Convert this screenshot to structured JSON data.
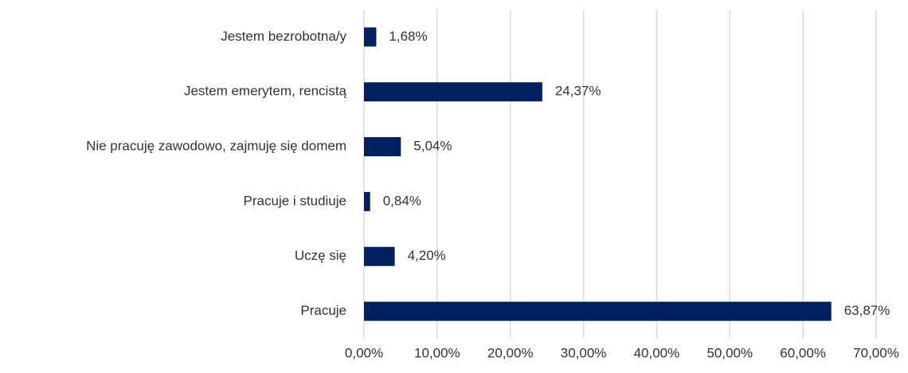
{
  "chart_data": {
    "type": "bar",
    "orientation": "horizontal",
    "categories": [
      "Jestem bezrobotna/y",
      "Jestem emerytem, rencistą",
      "Nie pracuję zawodowo, zajmuję się domem",
      "Pracuje i studiuje",
      "Uczę się",
      "Pracuje"
    ],
    "values": [
      1.68,
      24.37,
      5.04,
      0.84,
      4.2,
      63.87
    ],
    "value_labels": [
      "1,68%",
      "24,37%",
      "5,04%",
      "0,84%",
      "4,20%",
      "63,87%"
    ],
    "color": "#002060",
    "xlim": [
      0,
      70
    ],
    "xticks": [
      {
        "value": 0,
        "label": "0,00%"
      },
      {
        "value": 10,
        "label": "10,00%"
      },
      {
        "value": 20,
        "label": "20,00%"
      },
      {
        "value": 30,
        "label": "30,00%"
      },
      {
        "value": 40,
        "label": "40,00%"
      },
      {
        "value": 50,
        "label": "50,00%"
      },
      {
        "value": 60,
        "label": "60,00%"
      },
      {
        "value": 70,
        "label": "70,00%"
      }
    ],
    "grid": true
  }
}
